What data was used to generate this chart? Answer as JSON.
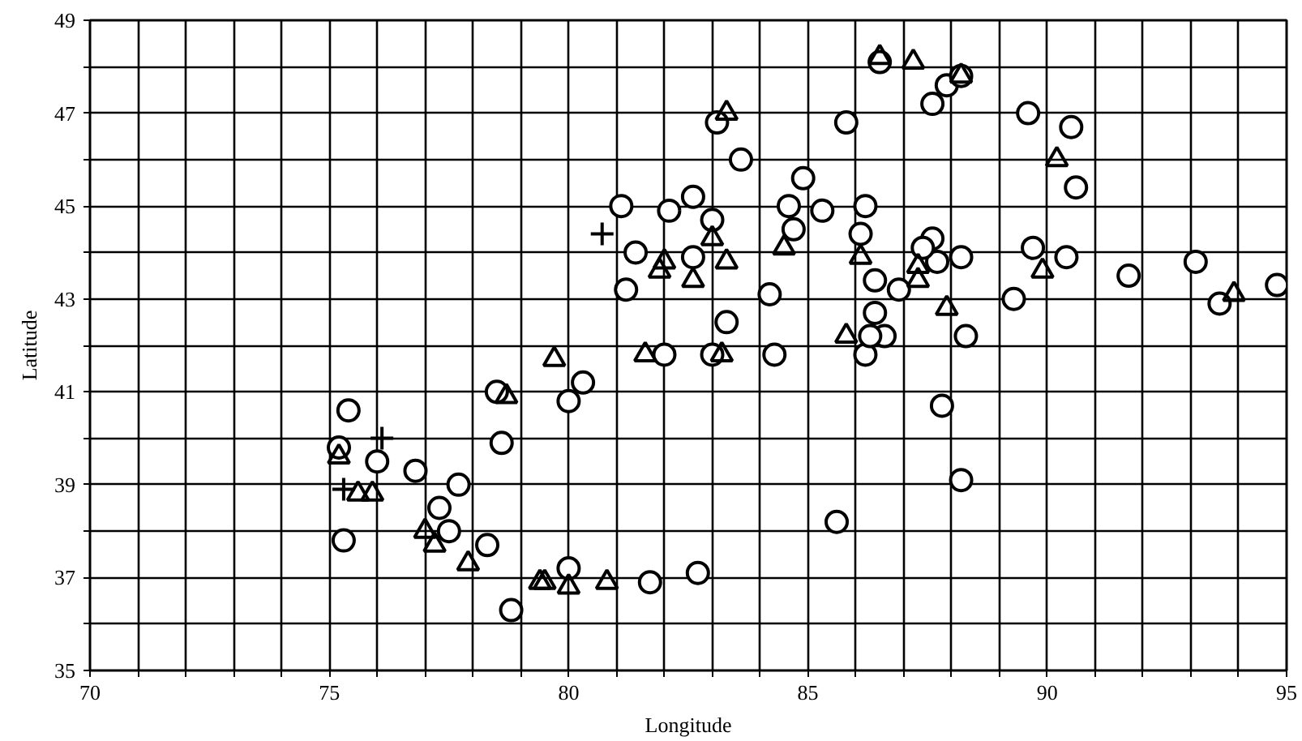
{
  "chart_data": {
    "type": "scatter",
    "xlabel": "Longitude",
    "ylabel": "Latitude",
    "grid": true,
    "xlim": [
      70,
      95
    ],
    "ylim": [
      35,
      49
    ],
    "xticks": [
      70,
      {
        "value": 71,
        "label": null
      },
      {
        "value": 72,
        "label": null
      },
      {
        "value": 73,
        "label": null
      },
      {
        "value": 74,
        "label": null
      },
      75,
      {
        "value": 76,
        "label": null
      },
      {
        "value": 77,
        "label": null
      },
      {
        "value": 78,
        "label": null
      },
      {
        "value": 79,
        "label": null
      },
      80,
      {
        "value": 81,
        "label": null
      },
      {
        "value": 82,
        "label": null
      },
      {
        "value": 83,
        "label": null
      },
      {
        "value": 84,
        "label": null
      },
      85,
      {
        "value": 86,
        "label": null
      },
      {
        "value": 87,
        "label": null
      },
      {
        "value": 88,
        "label": null
      },
      {
        "value": 89,
        "label": null
      },
      90,
      {
        "value": 91,
        "label": null
      },
      {
        "value": 92,
        "label": null
      },
      {
        "value": 93,
        "label": null
      },
      {
        "value": 94,
        "label": null
      },
      95
    ],
    "yticks": [
      35,
      {
        "value": 36,
        "label": null
      },
      37,
      {
        "value": 38,
        "label": null
      },
      39,
      {
        "value": 40,
        "label": null
      },
      41,
      {
        "value": 42,
        "label": null
      },
      43,
      {
        "value": 44,
        "label": null
      },
      45,
      {
        "value": 46,
        "label": null
      },
      47,
      {
        "value": 48,
        "label": null
      },
      49
    ],
    "series": [
      {
        "marker": "circle",
        "color": "#000000",
        "x": [
          75.4,
          75.2,
          76.0,
          75.3,
          76.8,
          77.7,
          77.3,
          77.5,
          78.3,
          78.5,
          78.6,
          78.8,
          80.3,
          80.0,
          80.0,
          81.7,
          82.7,
          85.6,
          82.0,
          83.0,
          84.3,
          83.3,
          86.2,
          81.1,
          81.4,
          81.2,
          82.1,
          82.6,
          82.6,
          83.0,
          83.1,
          83.6,
          84.2,
          84.9,
          84.6,
          84.7,
          85.3,
          85.8,
          86.2,
          86.1,
          86.4,
          86.5,
          87.6,
          87.9,
          88.2,
          89.6,
          90.5,
          90.6,
          89.7,
          90.4,
          91.7,
          93.1,
          93.6,
          94.8,
          89.3,
          88.2,
          87.6,
          87.7,
          87.4,
          86.9,
          86.4,
          86.6,
          88.3,
          87.8,
          88.2,
          86.3
        ],
        "values": [
          40.6,
          39.8,
          39.5,
          37.8,
          39.3,
          39.0,
          38.5,
          38.0,
          37.7,
          41.0,
          39.9,
          36.3,
          41.2,
          40.8,
          37.2,
          36.9,
          37.1,
          38.2,
          41.8,
          41.8,
          41.8,
          42.5,
          41.8,
          45.0,
          44.0,
          43.2,
          44.9,
          45.2,
          43.9,
          44.7,
          46.8,
          46.0,
          43.1,
          45.6,
          45.0,
          44.5,
          44.9,
          46.8,
          45.0,
          44.4,
          43.4,
          48.1,
          47.2,
          47.6,
          47.8,
          47.0,
          46.7,
          45.4,
          44.1,
          43.9,
          43.5,
          43.8,
          42.9,
          43.3,
          43.0,
          43.9,
          44.3,
          43.8,
          44.1,
          43.2,
          42.7,
          42.2,
          42.2,
          40.7,
          39.1,
          42.2
        ]
      },
      {
        "marker": "triangle",
        "color": "#000000",
        "x": [
          75.2,
          75.6,
          75.9,
          77.0,
          77.2,
          77.9,
          78.7,
          79.7,
          79.4,
          79.5,
          80.0,
          80.8,
          81.6,
          83.2,
          85.8,
          81.9,
          82.0,
          82.6,
          83.0,
          83.3,
          83.3,
          84.5,
          86.1,
          86.5,
          87.2,
          88.2,
          90.2,
          89.9,
          93.9,
          87.9,
          87.3,
          87.3
        ],
        "values": [
          39.6,
          38.8,
          38.8,
          38.0,
          37.7,
          37.3,
          40.9,
          41.7,
          36.9,
          36.9,
          36.8,
          36.9,
          41.8,
          41.8,
          42.2,
          43.6,
          43.8,
          43.4,
          44.3,
          43.8,
          47.0,
          44.1,
          43.9,
          48.2,
          48.1,
          47.8,
          46.0,
          43.6,
          43.1,
          42.8,
          43.7,
          43.4
        ]
      },
      {
        "marker": "cross",
        "color": "#000000",
        "x": [
          75.3,
          76.1,
          80.7
        ],
        "values": [
          38.9,
          40.0,
          44.4
        ]
      }
    ]
  }
}
